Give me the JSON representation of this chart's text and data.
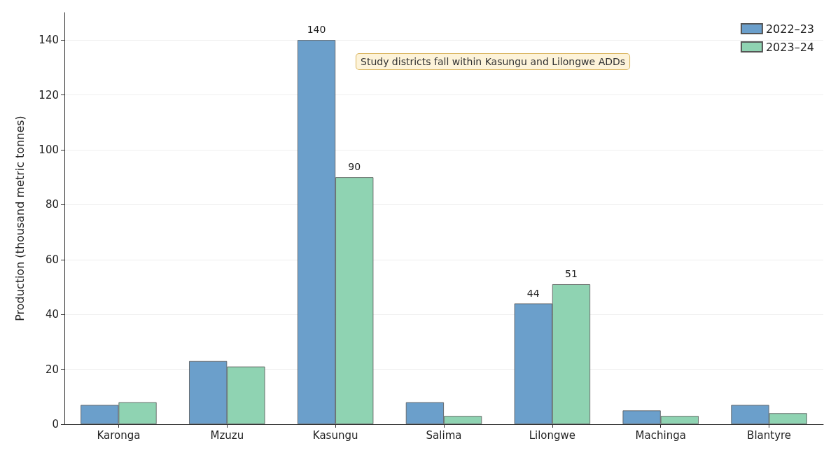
{
  "chart_data": {
    "type": "bar",
    "ylabel": "Production (thousand metric tonnes)",
    "categories": [
      "Karonga",
      "Mzuzu",
      "Kasungu",
      "Salima",
      "Lilongwe",
      "Machinga",
      "Blantyre"
    ],
    "series": [
      {
        "name": "2022–23",
        "color": "#6b9fcb",
        "values": [
          7,
          23,
          140,
          8,
          44,
          5,
          7
        ],
        "value_labels": [
          null,
          null,
          "140",
          null,
          "44",
          null,
          null
        ]
      },
      {
        "name": "2023–24",
        "color": "#8fd3b2",
        "values": [
          8,
          21,
          90,
          3,
          51,
          3,
          4
        ],
        "value_labels": [
          null,
          null,
          "90",
          null,
          "51",
          null,
          null
        ]
      }
    ],
    "ylim": [
      0,
      150
    ],
    "yticks": [
      0,
      20,
      40,
      60,
      80,
      100,
      120,
      140
    ],
    "grid": "y",
    "legend": "top right",
    "annotations": [
      "Study districts fall within Kasungu and Lilongwe ADDs"
    ]
  }
}
